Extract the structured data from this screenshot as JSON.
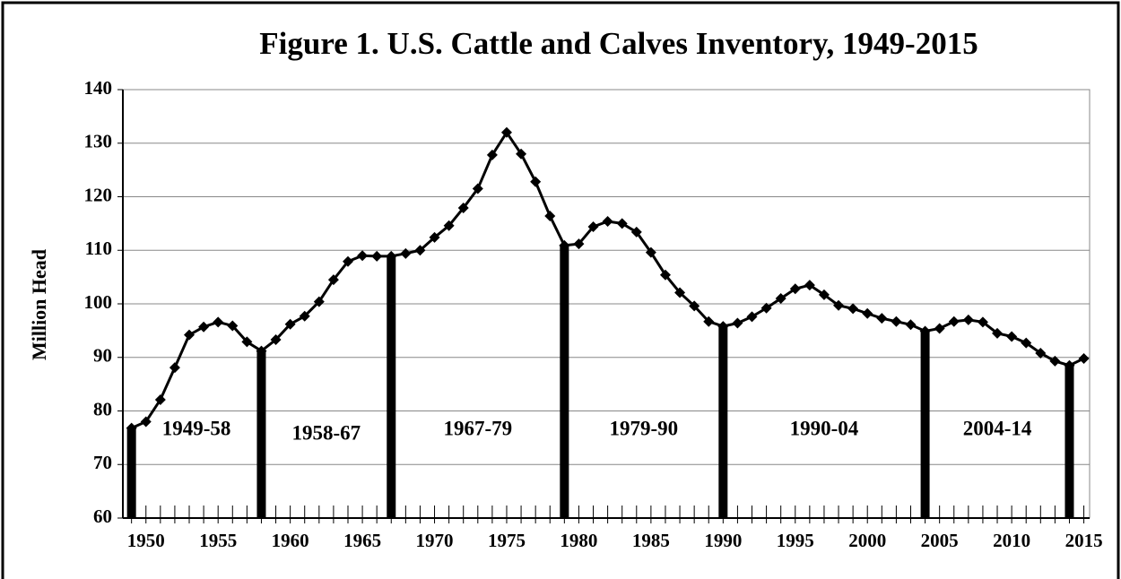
{
  "chart_data": {
    "type": "line",
    "title": "Figure 1. U.S. Cattle and Calves Inventory, 1949-2015",
    "ylabel": "Million Head",
    "x": [
      1949,
      1950,
      1951,
      1952,
      1953,
      1954,
      1955,
      1956,
      1957,
      1958,
      1959,
      1960,
      1961,
      1962,
      1963,
      1964,
      1965,
      1966,
      1967,
      1968,
      1969,
      1970,
      1971,
      1972,
      1973,
      1974,
      1975,
      1976,
      1977,
      1978,
      1979,
      1980,
      1981,
      1982,
      1983,
      1984,
      1985,
      1986,
      1987,
      1988,
      1989,
      1990,
      1991,
      1992,
      1993,
      1994,
      1995,
      1996,
      1997,
      1998,
      1999,
      2000,
      2001,
      2002,
      2003,
      2004,
      2005,
      2006,
      2007,
      2008,
      2009,
      2010,
      2011,
      2012,
      2013,
      2014,
      2015
    ],
    "series": [
      {
        "name": "Cattle and calves",
        "color": "#000000",
        "values": [
          76.8,
          78.0,
          82.1,
          88.1,
          94.2,
          95.7,
          96.6,
          95.9,
          92.9,
          91.2,
          93.3,
          96.2,
          97.7,
          100.4,
          104.5,
          107.9,
          109.0,
          108.9,
          108.9,
          109.4,
          110.0,
          112.4,
          114.6,
          117.9,
          121.5,
          127.8,
          132.0,
          128.0,
          122.8,
          116.4,
          110.9,
          111.2,
          114.4,
          115.4,
          115.0,
          113.4,
          109.6,
          105.4,
          102.1,
          99.6,
          96.7,
          95.8,
          96.4,
          97.6,
          99.2,
          101.0,
          102.8,
          103.5,
          101.7,
          99.7,
          99.1,
          98.2,
          97.3,
          96.7,
          96.1,
          94.9,
          95.4,
          96.7,
          97.0,
          96.6,
          94.5,
          93.9,
          92.7,
          90.8,
          89.3,
          88.5,
          89.8
        ]
      }
    ],
    "troughs": [
      1949,
      1958,
      1967,
      1979,
      1990,
      2004,
      2014
    ],
    "cycles": [
      "1949-58",
      "1958-67",
      "1967-79",
      "1979-90",
      "1990-04",
      "2004-14"
    ],
    "xlim": [
      1948.4,
      2015.4
    ],
    "xticks": [
      1950,
      1955,
      1960,
      1965,
      1970,
      1975,
      1980,
      1985,
      1990,
      1995,
      2000,
      2005,
      2010,
      2015
    ],
    "ylim": [
      60,
      140
    ],
    "yticks": [
      60,
      70,
      80,
      90,
      100,
      110,
      120,
      130,
      140
    ],
    "grid": true
  }
}
